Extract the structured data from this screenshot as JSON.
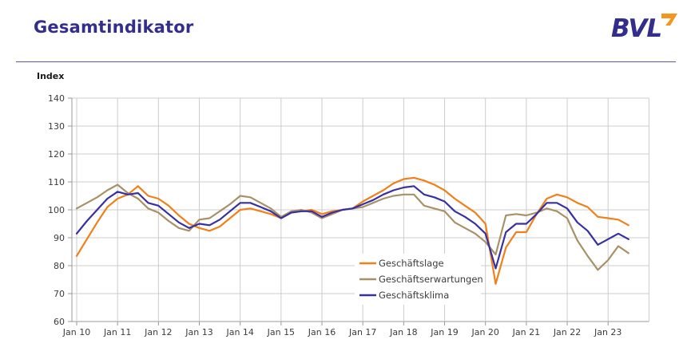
{
  "header": {
    "title": "Gesamtindikator",
    "logo_text": "BVL"
  },
  "chart": {
    "index_label": "Index"
  },
  "chart_data": {
    "type": "line",
    "title": "Gesamtindikator",
    "ylabel": "Index",
    "ylim": [
      60,
      140
    ],
    "ytick_step": 10,
    "grid": true,
    "legend_position": "inside-bottom-center",
    "x_start": "Jan 10",
    "x_interval": "quarterly",
    "x_tick_labels": [
      "Jan 10",
      "Jan 11",
      "Jan 12",
      "Jan 13",
      "Jan 14",
      "Jan 15",
      "Jan 16",
      "Jan 17",
      "Jan 18",
      "Jan 19",
      "Jan 20",
      "Jan 21",
      "Jan 22",
      "Jan 23"
    ],
    "colors": {
      "geschaeftslage": "#F0801A",
      "geschaeftserwartungen": "#A89168",
      "geschaeftsklima": "#3730A3",
      "grid": "#CCCCCC",
      "axis": "#999999",
      "tick_text": "#3C3C3C",
      "accent_title": "#332D8E",
      "logo_arrow": "#F7941D"
    },
    "series": [
      {
        "name": "Geschäftslage",
        "color": "#F0801A",
        "values": [
          83.5,
          89.5,
          95.5,
          101,
          104,
          105.5,
          108.5,
          105,
          104,
          101.5,
          98,
          95,
          93.5,
          92.5,
          94,
          97,
          100,
          100.5,
          99.5,
          98.5,
          97,
          99,
          99.5,
          100,
          98.5,
          99.5,
          100,
          100.5,
          103,
          105,
          107,
          109.5,
          111,
          111.5,
          110.5,
          109,
          107,
          104,
          101.5,
          99,
          95,
          73.5,
          86.5,
          92,
          92,
          98.5,
          104,
          105.5,
          104.5,
          102.5,
          101,
          97.5,
          97,
          96.5,
          94.5
        ]
      },
      {
        "name": "Geschäftserwartungen",
        "color": "#A89168",
        "values": [
          100.5,
          102.5,
          104.5,
          107,
          109,
          106,
          104,
          100.5,
          99,
          96,
          93.5,
          92.5,
          96.5,
          97,
          99.5,
          102,
          105,
          104.5,
          102.5,
          100.5,
          97.5,
          99.5,
          100,
          99,
          97,
          98.5,
          100,
          100.5,
          101,
          102.5,
          104,
          105,
          105.5,
          105.5,
          101.5,
          100.5,
          99.5,
          95.5,
          93.5,
          91.5,
          88.5,
          84,
          98,
          98.5,
          98,
          99,
          100.5,
          99.5,
          97,
          89,
          83.5,
          78.5,
          82,
          87,
          84.5
        ]
      },
      {
        "name": "Geschäftsklima",
        "color": "#3730A3",
        "values": [
          91.5,
          96,
          100,
          104,
          106.5,
          105.5,
          106,
          102.5,
          101.5,
          98.5,
          95.5,
          93.5,
          95,
          94.5,
          96.5,
          99.5,
          102.5,
          102.5,
          101,
          99.5,
          97,
          99,
          99.5,
          99.5,
          97.5,
          99,
          100,
          100.5,
          102,
          103.5,
          105.5,
          107,
          108,
          108.5,
          105.5,
          104.5,
          103,
          99.5,
          97.5,
          95,
          91.5,
          79,
          92,
          95,
          95,
          98.5,
          102.5,
          102.5,
          100.5,
          95.5,
          92.5,
          87.5,
          89.5,
          91.5,
          89.5
        ]
      }
    ]
  }
}
